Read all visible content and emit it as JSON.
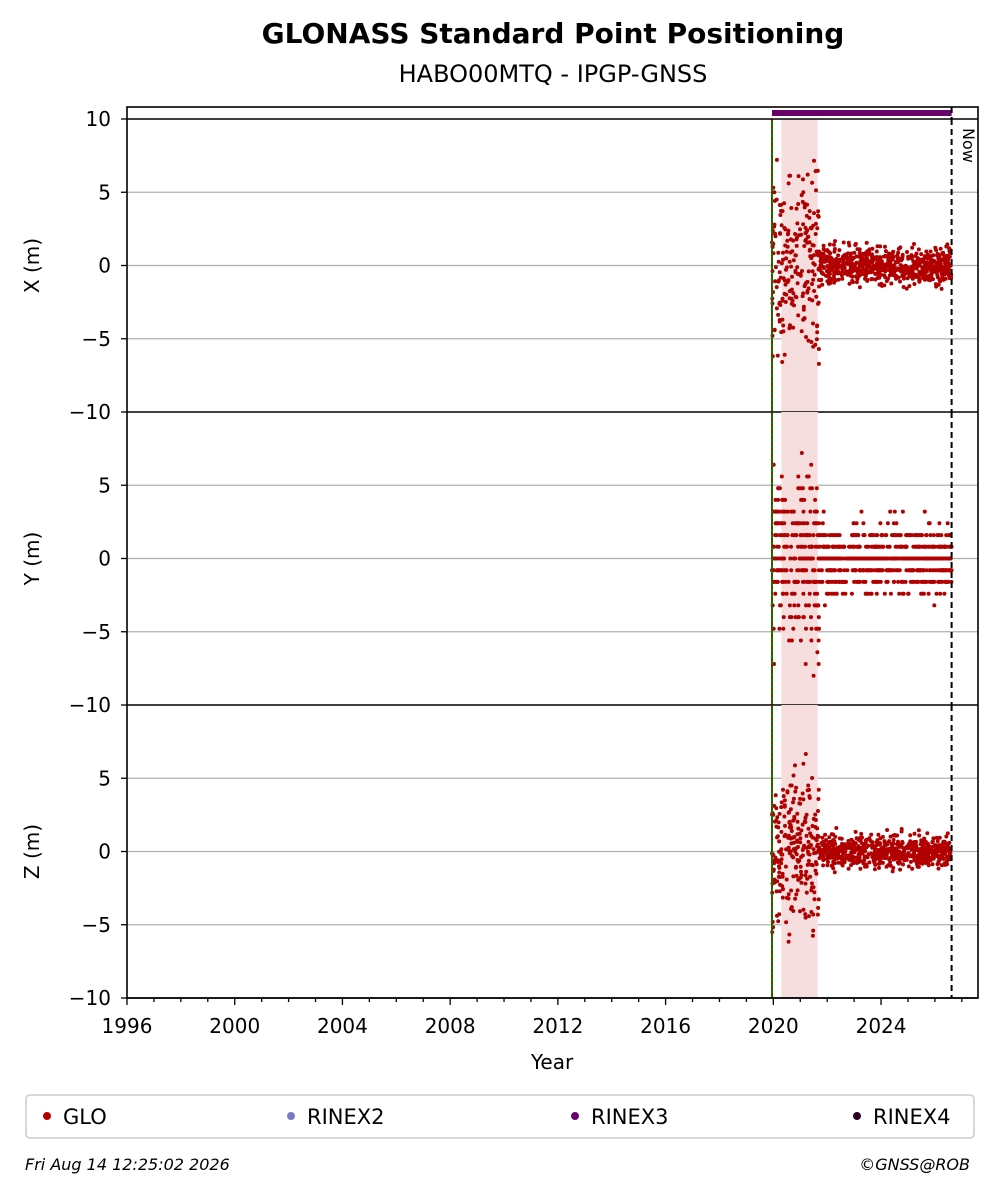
{
  "chart_data": {
    "type": "scatter",
    "title": "GLONASS Standard Point Positioning",
    "subtitle": "HABO00MTQ - IPGP-GNSS",
    "xlabel": "Year",
    "xlim": [
      1996,
      2027.6
    ],
    "x_ticks": [
      "1996",
      "2000",
      "2004",
      "2008",
      "2012",
      "2016",
      "2020",
      "2024"
    ],
    "x_tick_values": [
      1996,
      2000,
      2004,
      2008,
      2012,
      2016,
      2020,
      2024
    ],
    "panels": [
      {
        "ylabel": "X (m)",
        "ylim": [
          -10,
          10
        ],
        "y_ticks": [
          "10",
          "5",
          "0",
          "−5",
          "−10"
        ],
        "y_tick_values": [
          10,
          5,
          0,
          -5,
          -10
        ],
        "spread_early": 6.5,
        "spread_late": 1.4
      },
      {
        "ylabel": "Y (m)",
        "ylim": [
          -10,
          10
        ],
        "y_ticks": [
          "5",
          "0",
          "−5",
          "−10"
        ],
        "y_tick_values": [
          5,
          0,
          -5,
          -10
        ],
        "spread_early": 6.5,
        "spread_late": 2.6
      },
      {
        "ylabel": "Z (m)",
        "ylim": [
          -10,
          10
        ],
        "y_ticks": [
          "5",
          "0",
          "−5",
          "−10"
        ],
        "y_tick_values": [
          5,
          0,
          -5,
          -10
        ],
        "spread_early": 6.0,
        "spread_late": 1.2
      }
    ],
    "series": [
      {
        "name": "GLO",
        "color": "#b20000",
        "x_start": 2019.95,
        "x_end": 2026.62
      }
    ],
    "rinex3_span": [
      2019.95,
      2026.62
    ],
    "start_marker": 2019.95,
    "now_marker": 2026.62,
    "now_label": "Now",
    "grid": true,
    "legend": {
      "placement": "bottom",
      "entries": [
        {
          "label": "GLO",
          "color": "#b20000"
        },
        {
          "label": "RINEX2",
          "color": "#7b79c2"
        },
        {
          "label": "RINEX3",
          "color": "#6a006a"
        },
        {
          "label": "RINEX4",
          "color": "#2a0022"
        }
      ]
    }
  },
  "footer": {
    "timestamp": "Fri Aug 14 12:25:02 2026",
    "credit": "©GNSS@ROB"
  }
}
